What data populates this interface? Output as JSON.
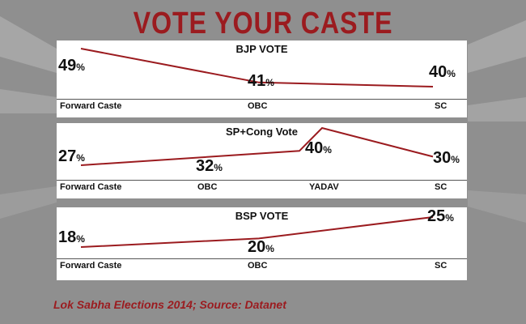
{
  "header": {
    "title": "VOTE YOUR CASTE"
  },
  "footer": {
    "source": "Lok Sabha Elections 2014; Source: Datanet"
  },
  "colors": {
    "title": "#9b1b1f",
    "line": "#9b1b1f",
    "panel": "#ffffff",
    "background": "#8f8f8f"
  },
  "chart_data": [
    {
      "type": "line",
      "title": "BJP VOTE",
      "categories": [
        "Forward Caste",
        "OBC",
        "SC"
      ],
      "values": [
        49,
        41,
        40
      ],
      "labels": [
        "49",
        "41",
        "40"
      ],
      "unit": "%"
    },
    {
      "type": "line",
      "title": "SP+Cong Vote",
      "categories": [
        "Forward Caste",
        "OBC",
        "YADAV",
        "SC"
      ],
      "values": [
        27,
        32,
        40,
        30
      ],
      "labels": [
        "27",
        "32",
        "40",
        "30"
      ],
      "unit": "%"
    },
    {
      "type": "line",
      "title": "BSP VOTE",
      "categories": [
        "Forward Caste",
        "OBC",
        "SC"
      ],
      "values": [
        18,
        20,
        25
      ],
      "labels": [
        "18",
        "20",
        "25"
      ],
      "unit": "%"
    }
  ]
}
